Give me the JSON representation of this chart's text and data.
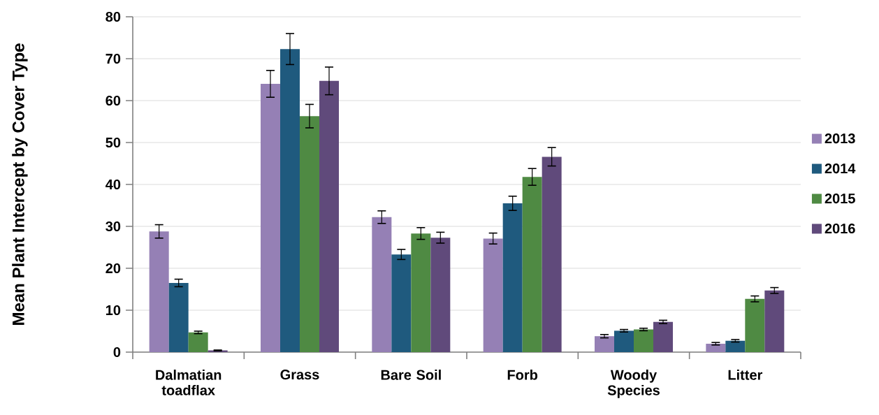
{
  "chart_data": {
    "type": "bar",
    "ylabel": "Mean Plant Intercept by Cover Type",
    "categories": [
      "Dalmatian toadflax",
      "Grass",
      "Bare Soil",
      "Forb",
      "Woody Species",
      "Litter"
    ],
    "series": [
      {
        "name": "2013",
        "color": "#9580b5",
        "values": [
          28.8,
          64.0,
          32.2,
          27.1,
          3.8,
          2.0
        ],
        "errors": [
          1.6,
          3.2,
          1.5,
          1.3,
          0.4,
          0.3
        ]
      },
      {
        "name": "2014",
        "color": "#1f5a7e",
        "values": [
          16.5,
          72.3,
          23.3,
          35.5,
          5.1,
          2.7
        ],
        "errors": [
          0.9,
          3.7,
          1.2,
          1.7,
          0.3,
          0.3
        ]
      },
      {
        "name": "2015",
        "color": "#4f8a43",
        "values": [
          4.7,
          56.3,
          28.3,
          41.8,
          5.4,
          12.7
        ],
        "errors": [
          0.3,
          2.8,
          1.4,
          2.0,
          0.3,
          0.7
        ]
      },
      {
        "name": "2016",
        "color": "#604a7b",
        "values": [
          0.4,
          64.7,
          27.3,
          46.6,
          7.2,
          14.7
        ],
        "errors": [
          0.1,
          3.3,
          1.3,
          2.2,
          0.4,
          0.7
        ]
      }
    ],
    "ylim": [
      0,
      80
    ],
    "yticks": [
      0,
      10,
      20,
      30,
      40,
      50,
      60,
      70,
      80
    ],
    "grid": "y",
    "legend": "right"
  }
}
